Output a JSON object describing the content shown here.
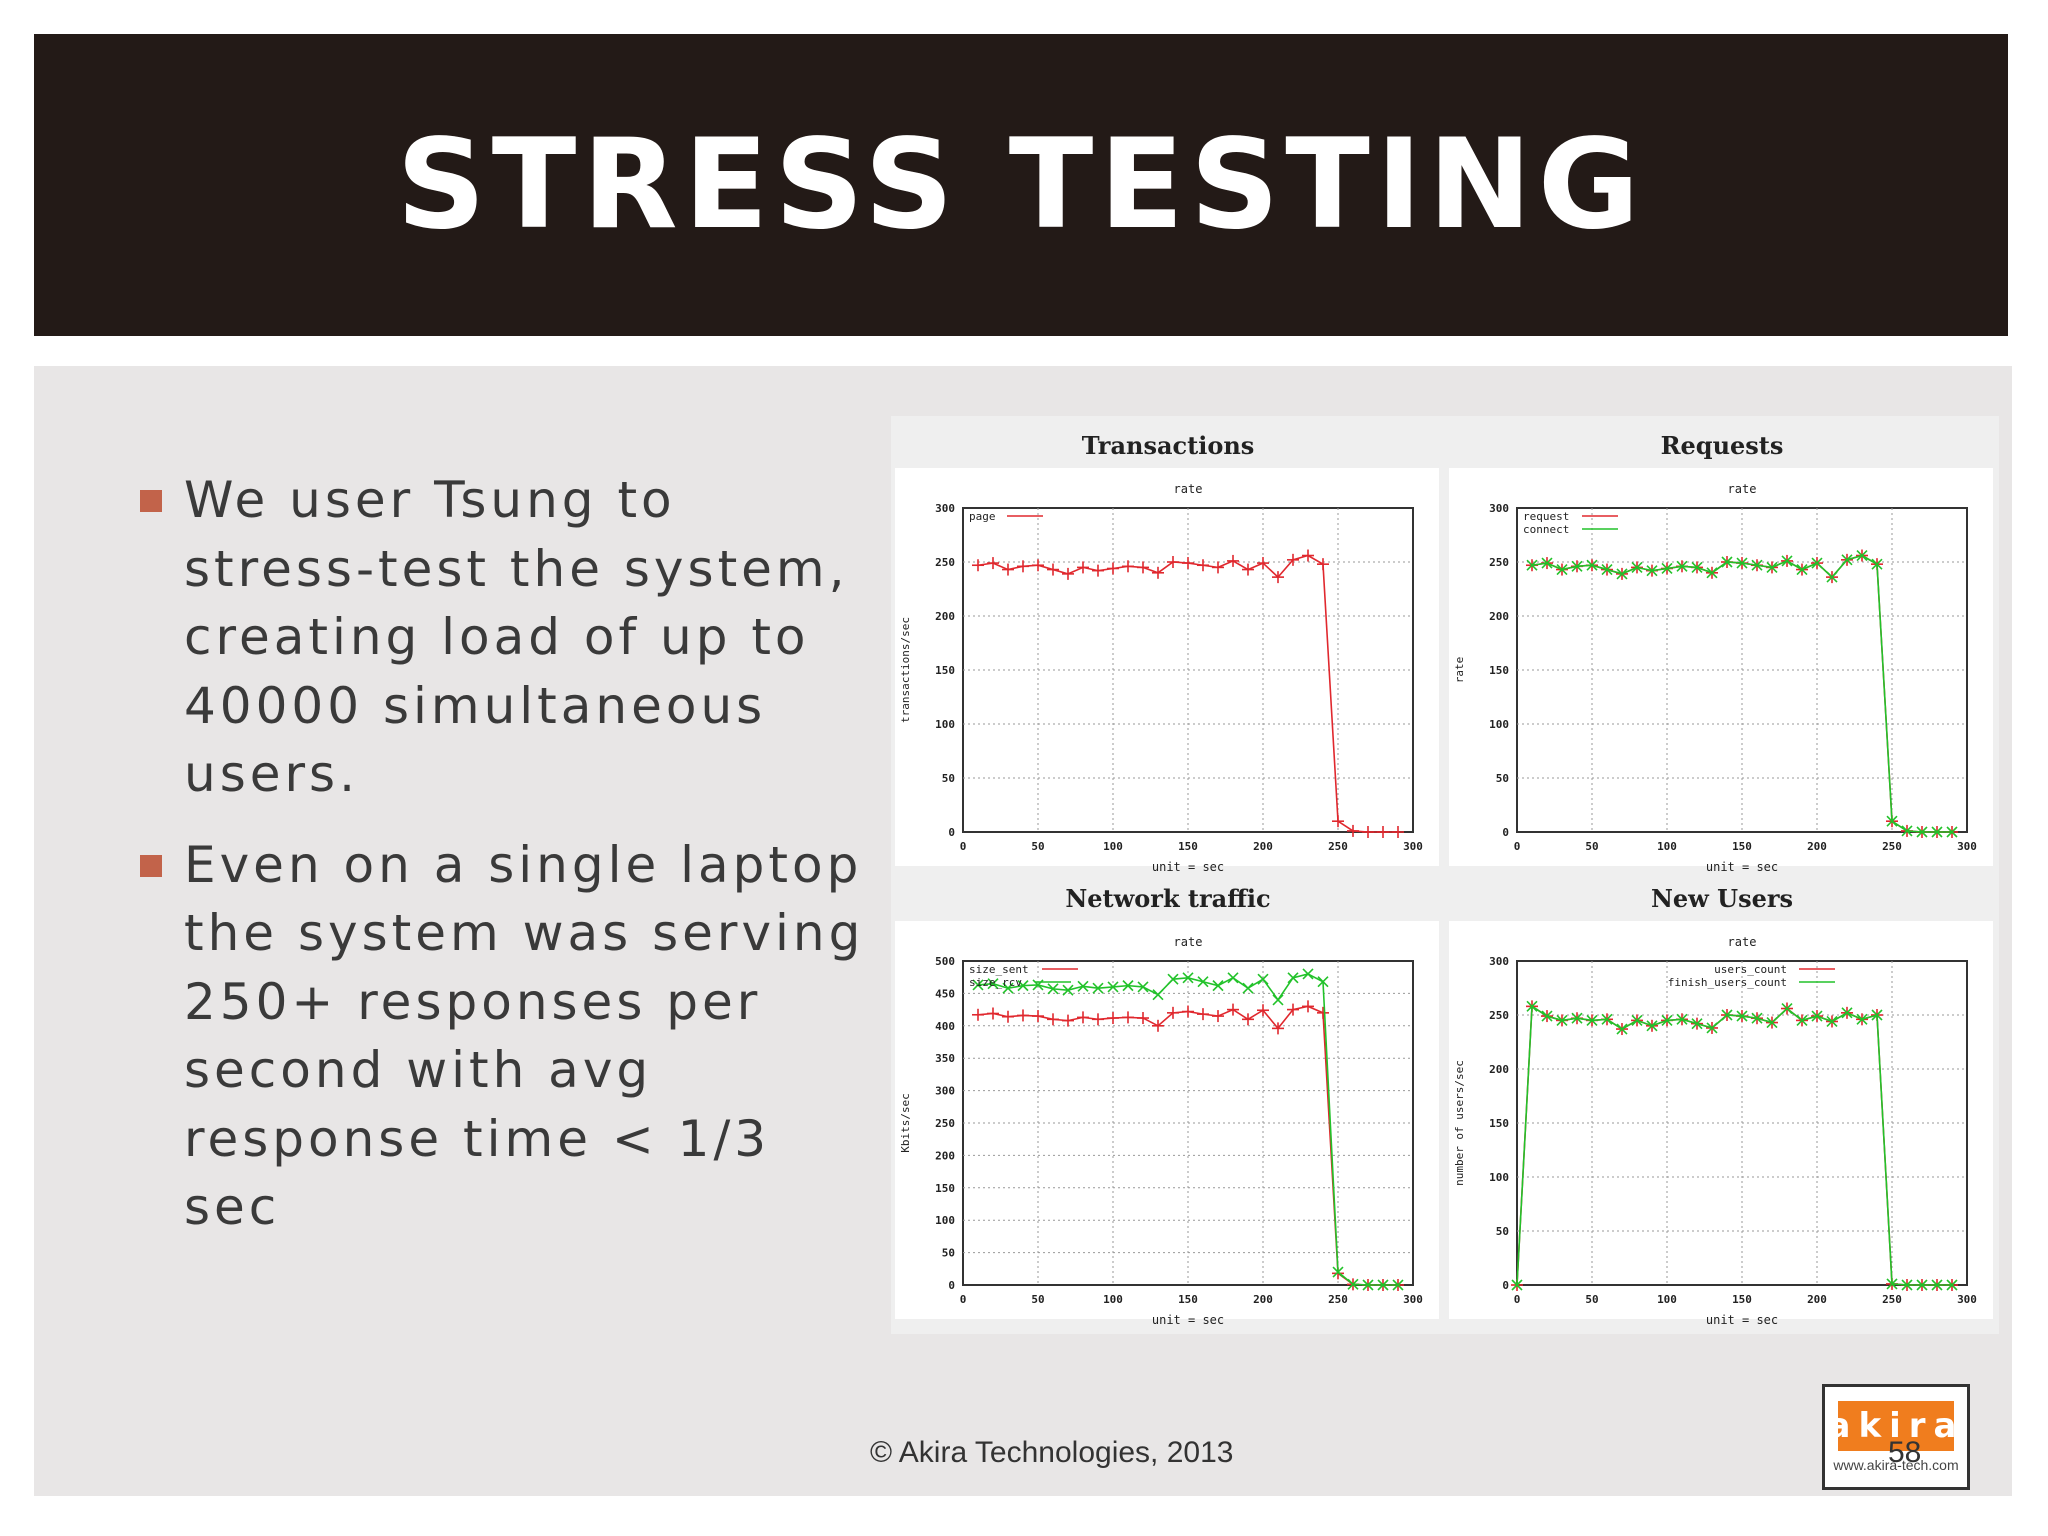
{
  "slide": {
    "title": "STRESS TESTING",
    "bullets": [
      "We user Tsung to stress-test the system, creating load of up to 40000 simultaneous users.",
      "Even on a single laptop the system was serving 250+ responses per second with avg response time < 1/3 sec"
    ],
    "footer": "© Akira Technologies, 2013",
    "page_number": "58",
    "logo_text": "akira",
    "logo_url": "www.akira-tech.com"
  },
  "colors": {
    "title_bg": "#231a17",
    "content_bg": "#e8e6e6",
    "bullet_marker": "#c2634a",
    "series_red": "#e0282e",
    "series_green": "#22c22a",
    "logo_orange": "#f07d1e"
  },
  "chart_data": [
    {
      "type": "line",
      "title": "Transactions",
      "subtitle": "rate",
      "xlabel": "unit = sec",
      "ylabel": "transactions/sec",
      "xlim": [
        0,
        300
      ],
      "ylim": [
        0,
        300
      ],
      "x_ticks": [
        0,
        50,
        100,
        150,
        200,
        250,
        300
      ],
      "y_ticks": [
        0,
        50,
        100,
        150,
        200,
        250,
        300
      ],
      "legend_position": "top-left",
      "series": [
        {
          "name": "page",
          "color": "#e0282e",
          "x": [
            10,
            20,
            30,
            40,
            50,
            60,
            70,
            80,
            90,
            100,
            110,
            120,
            130,
            140,
            150,
            160,
            170,
            180,
            190,
            200,
            210,
            220,
            230,
            240,
            250,
            260,
            270,
            280,
            290
          ],
          "y": [
            247,
            249,
            243,
            246,
            247,
            243,
            239,
            245,
            242,
            244,
            246,
            245,
            240,
            250,
            249,
            247,
            245,
            251,
            243,
            249,
            236,
            252,
            256,
            248,
            10,
            1,
            0,
            0,
            0
          ]
        }
      ]
    },
    {
      "type": "line",
      "title": "Requests",
      "subtitle": "rate",
      "xlabel": "unit = sec",
      "ylabel": "rate",
      "xlim": [
        0,
        300
      ],
      "ylim": [
        0,
        300
      ],
      "x_ticks": [
        0,
        50,
        100,
        150,
        200,
        250,
        300
      ],
      "y_ticks": [
        0,
        50,
        100,
        150,
        200,
        250,
        300
      ],
      "legend_position": "top-left",
      "series": [
        {
          "name": "request",
          "color": "#e0282e",
          "x": [
            10,
            20,
            30,
            40,
            50,
            60,
            70,
            80,
            90,
            100,
            110,
            120,
            130,
            140,
            150,
            160,
            170,
            180,
            190,
            200,
            210,
            220,
            230,
            240,
            250,
            260,
            270,
            280,
            290
          ],
          "y": [
            247,
            249,
            243,
            246,
            247,
            243,
            239,
            245,
            242,
            244,
            246,
            245,
            240,
            250,
            249,
            247,
            245,
            251,
            243,
            249,
            236,
            252,
            256,
            248,
            10,
            1,
            0,
            0,
            0
          ]
        },
        {
          "name": "connect",
          "color": "#22c22a",
          "x": [
            10,
            20,
            30,
            40,
            50,
            60,
            70,
            80,
            90,
            100,
            110,
            120,
            130,
            140,
            150,
            160,
            170,
            180,
            190,
            200,
            210,
            220,
            230,
            240,
            250,
            260,
            270,
            280,
            290
          ],
          "y": [
            247,
            249,
            243,
            246,
            247,
            243,
            239,
            245,
            242,
            244,
            246,
            245,
            240,
            250,
            249,
            247,
            245,
            251,
            243,
            249,
            236,
            252,
            256,
            248,
            10,
            1,
            0,
            0,
            0
          ]
        }
      ]
    },
    {
      "type": "line",
      "title": "Network traffic",
      "subtitle": "rate",
      "xlabel": "unit = sec",
      "ylabel": "Kbits/sec",
      "xlim": [
        0,
        300
      ],
      "ylim": [
        0,
        500
      ],
      "x_ticks": [
        0,
        50,
        100,
        150,
        200,
        250,
        300
      ],
      "y_ticks": [
        0,
        50,
        100,
        150,
        200,
        250,
        300,
        350,
        400,
        450,
        500
      ],
      "legend_position": "top-left",
      "series": [
        {
          "name": "size_sent",
          "color": "#e0282e",
          "x": [
            10,
            20,
            30,
            40,
            50,
            60,
            70,
            80,
            90,
            100,
            110,
            120,
            130,
            140,
            150,
            160,
            170,
            180,
            190,
            200,
            210,
            220,
            230,
            240,
            250,
            260,
            270,
            280,
            290
          ],
          "y": [
            417,
            419,
            414,
            416,
            415,
            410,
            408,
            413,
            410,
            412,
            413,
            412,
            400,
            420,
            422,
            418,
            415,
            425,
            410,
            424,
            396,
            425,
            430,
            420,
            18,
            1,
            0,
            0,
            0
          ]
        },
        {
          "name": "size_rcv",
          "color": "#22c22a",
          "x": [
            10,
            20,
            30,
            40,
            50,
            60,
            70,
            80,
            90,
            100,
            110,
            120,
            130,
            140,
            150,
            160,
            170,
            180,
            190,
            200,
            210,
            220,
            230,
            240,
            250,
            260,
            270,
            280,
            290
          ],
          "y": [
            463,
            465,
            458,
            462,
            463,
            457,
            455,
            461,
            458,
            460,
            462,
            460,
            448,
            472,
            474,
            468,
            462,
            474,
            458,
            472,
            440,
            474,
            480,
            468,
            20,
            1,
            0,
            0,
            0
          ]
        }
      ]
    },
    {
      "type": "line",
      "title": "New Users",
      "subtitle": "rate",
      "xlabel": "unit = sec",
      "ylabel": "number of users/sec",
      "xlim": [
        0,
        300
      ],
      "ylim": [
        0,
        300
      ],
      "x_ticks": [
        0,
        50,
        100,
        150,
        200,
        250,
        300
      ],
      "y_ticks": [
        0,
        50,
        100,
        150,
        200,
        250,
        300
      ],
      "legend_position": "top-right",
      "series": [
        {
          "name": "users_count",
          "color": "#e0282e",
          "x": [
            0,
            10,
            20,
            30,
            40,
            50,
            60,
            70,
            80,
            90,
            100,
            110,
            120,
            130,
            140,
            150,
            160,
            170,
            180,
            190,
            200,
            210,
            220,
            230,
            240,
            250,
            260,
            270,
            280,
            290
          ],
          "y": [
            0,
            258,
            249,
            245,
            247,
            245,
            246,
            237,
            245,
            240,
            245,
            246,
            242,
            238,
            250,
            249,
            247,
            243,
            256,
            245,
            249,
            244,
            252,
            246,
            250,
            1,
            0,
            0,
            0,
            0
          ]
        },
        {
          "name": "finish_users_count",
          "color": "#22c22a",
          "x": [
            0,
            10,
            20,
            30,
            40,
            50,
            60,
            70,
            80,
            90,
            100,
            110,
            120,
            130,
            140,
            150,
            160,
            170,
            180,
            190,
            200,
            210,
            220,
            230,
            240,
            250,
            260,
            270,
            280,
            290
          ],
          "y": [
            0,
            258,
            249,
            245,
            247,
            245,
            246,
            237,
            245,
            240,
            245,
            246,
            242,
            238,
            250,
            249,
            247,
            243,
            256,
            245,
            249,
            244,
            252,
            246,
            250,
            1,
            0,
            0,
            0,
            0
          ]
        }
      ]
    }
  ]
}
